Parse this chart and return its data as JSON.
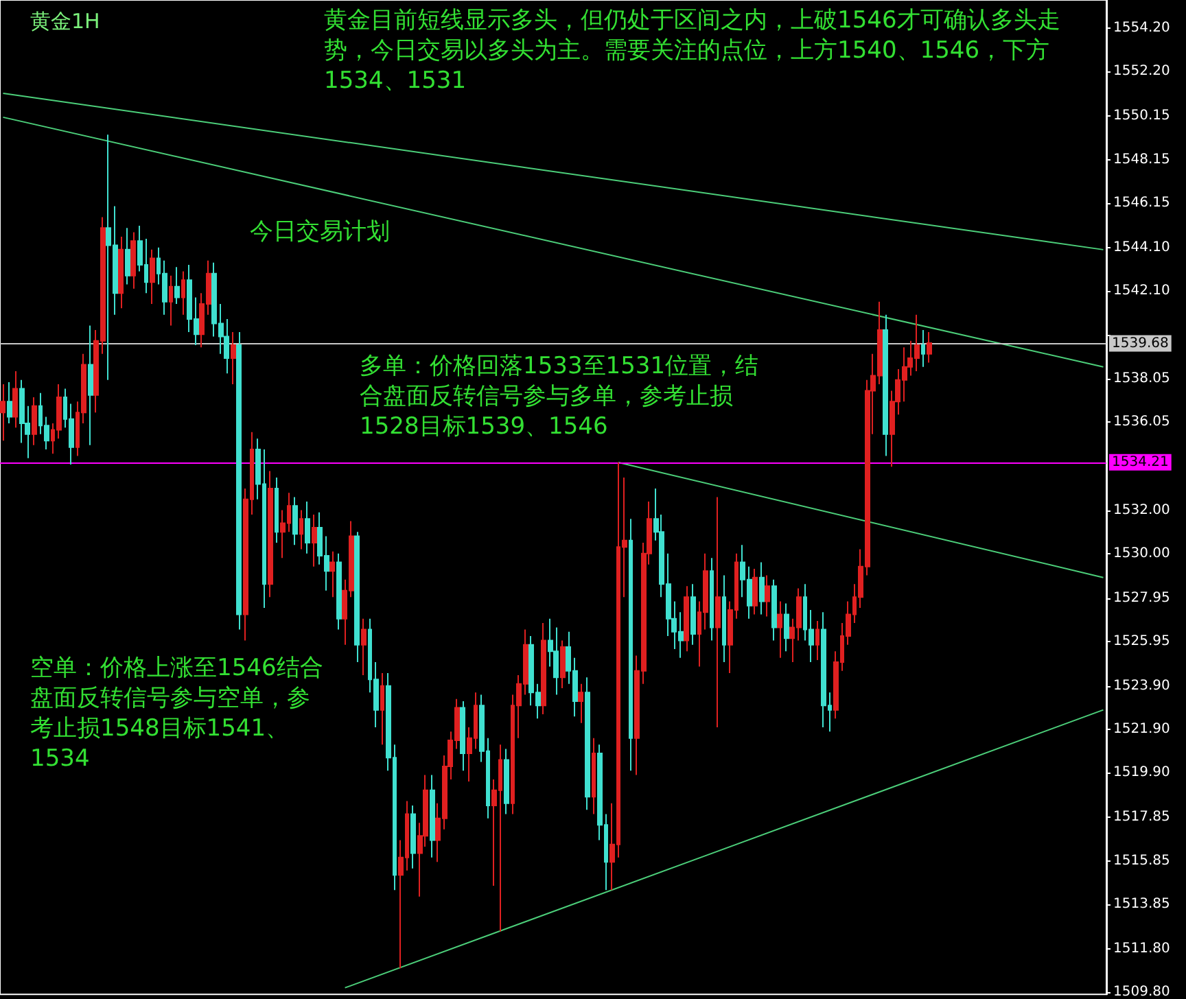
{
  "chart_data": {
    "type": "candlestick",
    "title": "黄金1H",
    "annotations": [
      "黄金目前短线显示多头，但仍处于区间之内，上破1546才可确认多头走势，今日交易以多头为主。需要关注的点位，上方1540、1546，下方1534、1531",
      "今日交易计划",
      "多单：价格回落1533至1531位置，结合盘面反转信号参与多单，参考止损1528目标1539、1546",
      "空单：价格上涨至1546结合盘面反转信号参与空单，参考止损1548目标1541、1534"
    ],
    "categories": [
      null,
      null,
      null,
      null,
      null,
      null,
      null,
      null,
      null,
      null,
      null,
      null,
      null,
      null,
      null,
      null,
      null,
      null,
      null,
      null,
      null,
      null,
      null,
      null,
      null,
      null,
      null,
      null,
      null,
      null,
      null,
      null,
      null,
      null,
      null,
      null,
      null,
      null,
      null,
      null,
      null,
      null,
      null,
      null,
      null,
      null,
      null,
      null,
      null,
      null,
      null,
      null,
      null,
      null,
      null,
      null,
      null,
      null,
      null,
      null,
      null,
      null,
      null,
      null,
      null,
      null,
      null,
      null,
      null,
      null,
      null,
      null,
      null,
      null,
      null,
      null,
      null,
      null,
      null,
      null,
      null,
      null,
      null,
      null,
      null,
      null,
      null,
      null,
      null,
      null,
      null,
      null,
      null,
      null,
      null,
      null,
      null,
      null,
      null,
      null,
      null,
      null,
      null,
      null,
      null,
      null,
      null,
      null,
      null,
      null,
      null,
      null,
      null,
      null,
      null,
      null,
      null,
      null,
      null,
      null,
      null,
      null,
      null,
      null,
      null,
      null,
      null,
      null,
      null,
      null,
      null,
      null,
      null,
      null,
      null,
      null,
      null,
      null,
      null,
      null,
      null,
      null,
      null,
      null,
      null,
      null,
      null,
      null,
      null,
      null,
      null,
      null,
      null,
      null,
      null,
      null,
      null,
      null,
      null,
      null,
      null,
      null,
      null,
      null,
      null,
      null,
      null,
      null,
      null,
      null,
      null,
      null,
      null,
      null,
      null,
      null,
      null,
      null
    ],
    "ohlc": [
      [
        1536.5,
        1537.8,
        1535.2,
        1537.0
      ],
      [
        1537.0,
        1537.9,
        1536.0,
        1536.3
      ],
      [
        1536.3,
        1538.4,
        1535.8,
        1537.6
      ],
      [
        1537.6,
        1538.0,
        1535.1,
        1536.0
      ],
      [
        1536.0,
        1536.8,
        1534.4,
        1535.5
      ],
      [
        1535.5,
        1537.2,
        1535.0,
        1536.8
      ],
      [
        1536.8,
        1537.4,
        1535.5,
        1535.9
      ],
      [
        1535.9,
        1536.3,
        1534.8,
        1535.2
      ],
      [
        1535.2,
        1536.0,
        1534.6,
        1535.7
      ],
      [
        1535.7,
        1537.8,
        1535.3,
        1537.2
      ],
      [
        1537.2,
        1537.6,
        1535.8,
        1536.2
      ],
      [
        1536.2,
        1536.9,
        1534.1,
        1534.9
      ],
      [
        1534.9,
        1537.0,
        1534.5,
        1536.5
      ],
      [
        1536.5,
        1539.2,
        1536.0,
        1538.7
      ],
      [
        1538.7,
        1540.5,
        1535.0,
        1537.3
      ],
      [
        1537.3,
        1540.3,
        1536.5,
        1539.8
      ],
      [
        1539.8,
        1545.5,
        1539.2,
        1545.0
      ],
      [
        1545.0,
        1549.3,
        1538.0,
        1544.2
      ],
      [
        1544.2,
        1546.0,
        1541.0,
        1542.0
      ],
      [
        1542.0,
        1544.6,
        1541.3,
        1544.0
      ],
      [
        1544.0,
        1545.0,
        1542.4,
        1542.8
      ],
      [
        1542.8,
        1544.8,
        1542.2,
        1544.4
      ],
      [
        1544.4,
        1545.1,
        1543.0,
        1543.3
      ],
      [
        1543.3,
        1544.5,
        1542.0,
        1542.5
      ],
      [
        1542.5,
        1544.0,
        1541.5,
        1543.6
      ],
      [
        1543.6,
        1544.1,
        1542.4,
        1542.9
      ],
      [
        1542.9,
        1543.5,
        1541.0,
        1541.6
      ],
      [
        1541.6,
        1542.8,
        1540.5,
        1542.3
      ],
      [
        1542.3,
        1543.2,
        1541.5,
        1541.8
      ],
      [
        1541.8,
        1543.0,
        1541.0,
        1542.6
      ],
      [
        1542.6,
        1543.3,
        1540.2,
        1540.8
      ],
      [
        1540.8,
        1541.8,
        1539.6,
        1540.1
      ],
      [
        1540.1,
        1542.0,
        1539.5,
        1541.5
      ],
      [
        1541.5,
        1543.5,
        1541.0,
        1542.9
      ],
      [
        1542.9,
        1543.4,
        1540.0,
        1540.6
      ],
      [
        1540.6,
        1541.5,
        1539.2,
        1540.0
      ],
      [
        1540.0,
        1540.8,
        1538.3,
        1539.0
      ],
      [
        1539.0,
        1540.2,
        1537.8,
        1539.6
      ],
      [
        1539.6,
        1540.2,
        1526.5,
        1527.2
      ],
      [
        1527.2,
        1533.0,
        1526.0,
        1532.5
      ],
      [
        1532.5,
        1535.6,
        1531.8,
        1534.8
      ],
      [
        1534.8,
        1535.3,
        1532.5,
        1533.2
      ],
      [
        1533.2,
        1534.8,
        1527.5,
        1528.6
      ],
      [
        1528.6,
        1533.8,
        1528.0,
        1533.0
      ],
      [
        1533.0,
        1533.5,
        1530.5,
        1531.0
      ],
      [
        1531.0,
        1532.0,
        1529.8,
        1531.4
      ],
      [
        1531.4,
        1532.8,
        1531.0,
        1532.2
      ],
      [
        1532.2,
        1532.6,
        1530.4,
        1530.9
      ],
      [
        1530.9,
        1532.0,
        1530.2,
        1531.6
      ],
      [
        1531.6,
        1532.4,
        1530.0,
        1530.5
      ],
      [
        1530.5,
        1531.8,
        1529.4,
        1531.2
      ],
      [
        1531.2,
        1531.9,
        1529.5,
        1529.9
      ],
      [
        1529.9,
        1530.8,
        1528.3,
        1529.2
      ],
      [
        1529.2,
        1530.1,
        1528.0,
        1529.6
      ],
      [
        1529.6,
        1530.0,
        1526.5,
        1527.0
      ],
      [
        1527.0,
        1528.8,
        1525.8,
        1528.3
      ],
      [
        1528.3,
        1531.5,
        1528.0,
        1530.8
      ],
      [
        1530.8,
        1531.0,
        1525.0,
        1525.8
      ],
      [
        1525.8,
        1527.0,
        1524.4,
        1526.5
      ],
      [
        1526.5,
        1527.0,
        1523.6,
        1524.2
      ],
      [
        1524.2,
        1525.0,
        1522.0,
        1522.8
      ],
      [
        1522.8,
        1524.5,
        1521.2,
        1523.9
      ],
      [
        1523.9,
        1524.5,
        1520.0,
        1520.6
      ],
      [
        1520.6,
        1521.2,
        1514.5,
        1515.2
      ],
      [
        1515.2,
        1516.8,
        1510.9,
        1516.0
      ],
      [
        1516.0,
        1518.6,
        1515.4,
        1518.0
      ],
      [
        1518.0,
        1518.4,
        1515.5,
        1516.2
      ],
      [
        1516.2,
        1517.6,
        1514.2,
        1517.0
      ],
      [
        1517.0,
        1519.8,
        1516.5,
        1519.1
      ],
      [
        1519.1,
        1519.8,
        1516.0,
        1516.8
      ],
      [
        1516.8,
        1518.5,
        1515.8,
        1517.8
      ],
      [
        1517.8,
        1520.7,
        1517.3,
        1520.2
      ],
      [
        1520.2,
        1521.8,
        1519.6,
        1521.4
      ],
      [
        1521.4,
        1523.3,
        1521.0,
        1522.9
      ],
      [
        1522.9,
        1523.2,
        1520.0,
        1520.8
      ],
      [
        1520.8,
        1522.0,
        1519.5,
        1521.5
      ],
      [
        1521.5,
        1523.6,
        1521.0,
        1523.0
      ],
      [
        1523.0,
        1523.5,
        1520.4,
        1520.9
      ],
      [
        1520.9,
        1521.5,
        1517.8,
        1518.4
      ],
      [
        1518.4,
        1519.6,
        1514.7,
        1519.1
      ],
      [
        1519.1,
        1521.2,
        1512.6,
        1520.5
      ],
      [
        1520.5,
        1521.0,
        1518.0,
        1518.5
      ],
      [
        1518.5,
        1523.5,
        1518.0,
        1523.0
      ],
      [
        1523.0,
        1524.4,
        1521.5,
        1524.0
      ],
      [
        1524.0,
        1526.5,
        1523.5,
        1525.8
      ],
      [
        1525.8,
        1526.2,
        1523.0,
        1523.6
      ],
      [
        1523.6,
        1524.0,
        1522.4,
        1523.0
      ],
      [
        1523.0,
        1526.8,
        1522.6,
        1526.0
      ],
      [
        1526.0,
        1527.0,
        1524.8,
        1525.5
      ],
      [
        1525.5,
        1526.6,
        1523.5,
        1524.3
      ],
      [
        1524.3,
        1526.0,
        1523.8,
        1525.7
      ],
      [
        1525.7,
        1526.4,
        1524.0,
        1524.6
      ],
      [
        1524.6,
        1525.2,
        1522.5,
        1523.2
      ],
      [
        1523.2,
        1524.0,
        1522.2,
        1523.6
      ],
      [
        1523.6,
        1524.3,
        1518.2,
        1518.8
      ],
      [
        1518.8,
        1521.5,
        1518.0,
        1520.8
      ],
      [
        1520.8,
        1521.2,
        1516.8,
        1517.5
      ],
      [
        1517.5,
        1518.0,
        1514.5,
        1515.8
      ],
      [
        1515.8,
        1518.5,
        1514.5,
        1516.6
      ],
      [
        1516.6,
        1534.2,
        1516.0,
        1530.3
      ],
      [
        1530.3,
        1533.5,
        1528.0,
        1530.6
      ],
      [
        1530.6,
        1531.6,
        1520.0,
        1521.5
      ],
      [
        1521.5,
        1525.3,
        1519.8,
        1524.6
      ],
      [
        1524.6,
        1530.5,
        1524.0,
        1530.0
      ],
      [
        1530.0,
        1532.4,
        1529.5,
        1531.6
      ],
      [
        1531.6,
        1533.0,
        1530.6,
        1531.0
      ],
      [
        1531.0,
        1531.8,
        1528.0,
        1528.6
      ],
      [
        1528.6,
        1530.0,
        1526.2,
        1527.0
      ],
      [
        1527.0,
        1527.8,
        1525.6,
        1526.4
      ],
      [
        1526.4,
        1527.3,
        1525.2,
        1526.0
      ],
      [
        1526.0,
        1528.5,
        1525.5,
        1528.0
      ],
      [
        1528.0,
        1528.6,
        1525.8,
        1526.3
      ],
      [
        1526.3,
        1527.8,
        1524.8,
        1527.3
      ],
      [
        1527.3,
        1530.0,
        1526.5,
        1529.2
      ],
      [
        1529.2,
        1529.8,
        1526.0,
        1526.6
      ],
      [
        1526.6,
        1532.6,
        1522.0,
        1528.0
      ],
      [
        1528.0,
        1529.0,
        1525.0,
        1525.8
      ],
      [
        1525.8,
        1527.8,
        1524.5,
        1527.4
      ],
      [
        1527.4,
        1530.0,
        1527.0,
        1529.6
      ],
      [
        1529.6,
        1530.4,
        1528.0,
        1528.8
      ],
      [
        1528.8,
        1529.4,
        1527.0,
        1527.6
      ],
      [
        1527.6,
        1529.3,
        1527.2,
        1528.9
      ],
      [
        1528.9,
        1529.6,
        1527.2,
        1527.8
      ],
      [
        1527.8,
        1529.0,
        1527.1,
        1528.5
      ],
      [
        1528.5,
        1528.8,
        1526.0,
        1526.6
      ],
      [
        1526.6,
        1527.8,
        1525.2,
        1527.2
      ],
      [
        1527.2,
        1527.7,
        1525.5,
        1526.1
      ],
      [
        1526.1,
        1527.0,
        1525.0,
        1526.6
      ],
      [
        1526.6,
        1528.4,
        1526.0,
        1528.0
      ],
      [
        1528.0,
        1528.6,
        1526.0,
        1526.5
      ],
      [
        1526.5,
        1527.4,
        1525.0,
        1525.8
      ],
      [
        1525.8,
        1526.9,
        1525.1,
        1526.5
      ],
      [
        1526.5,
        1527.3,
        1522.0,
        1523.0
      ],
      [
        1523.0,
        1523.6,
        1521.8,
        1522.8
      ],
      [
        1522.8,
        1525.5,
        1522.4,
        1525.0
      ],
      [
        1525.0,
        1526.8,
        1524.6,
        1526.2
      ],
      [
        1526.2,
        1527.8,
        1525.8,
        1527.2
      ],
      [
        1527.2,
        1528.6,
        1526.8,
        1528.0
      ],
      [
        1528.0,
        1530.2,
        1527.5,
        1529.4
      ],
      [
        1529.4,
        1538.0,
        1529.0,
        1537.5
      ],
      [
        1537.5,
        1539.2,
        1535.5,
        1538.2
      ],
      [
        1538.2,
        1541.6,
        1537.8,
        1540.3
      ],
      [
        1540.3,
        1541.0,
        1534.5,
        1535.5
      ],
      [
        1535.5,
        1537.5,
        1534.0,
        1537.0
      ],
      [
        1537.0,
        1538.5,
        1536.4,
        1538.0
      ],
      [
        1538.0,
        1539.5,
        1537.0,
        1538.6
      ],
      [
        1538.6,
        1539.8,
        1538.2,
        1539.0
      ],
      [
        1539.0,
        1541.0,
        1538.4,
        1539.6
      ],
      [
        1539.6,
        1540.3,
        1538.6,
        1539.2
      ],
      [
        1539.2,
        1540.2,
        1538.8,
        1539.7
      ],
      null,
      null,
      null,
      null,
      null,
      null,
      null,
      null,
      null,
      null,
      null,
      null,
      null,
      null,
      null,
      null,
      null,
      null,
      null,
      null,
      null,
      null,
      null,
      null,
      null,
      null,
      null,
      null
    ],
    "series": [
      {
        "type": "line",
        "color": "#4ccf7a",
        "values": [
          1551.2,
          null,
          null,
          null,
          null,
          null,
          null,
          null,
          null,
          null,
          null,
          null,
          null,
          null,
          null,
          null,
          null,
          null,
          null,
          null,
          null,
          null,
          null,
          null,
          null,
          null,
          null,
          null,
          null,
          null,
          null,
          null,
          null,
          null,
          null,
          null,
          null,
          null,
          null,
          null,
          null,
          null,
          null,
          null,
          null,
          null,
          null,
          null,
          null,
          null,
          null,
          null,
          null,
          null,
          null,
          null,
          null,
          null,
          null,
          null,
          null,
          null,
          null,
          null,
          null,
          null,
          null,
          null,
          null,
          null,
          null,
          null,
          null,
          null,
          null,
          null,
          null,
          null,
          null,
          null,
          null,
          null,
          null,
          null,
          null,
          null,
          null,
          null,
          null,
          null,
          null,
          null,
          null,
          null,
          null,
          null,
          null,
          null,
          null,
          null,
          null,
          null,
          null,
          null,
          null,
          null,
          null,
          null,
          null,
          null,
          null,
          null,
          null,
          null,
          null,
          null,
          null,
          null,
          null,
          null,
          null,
          null,
          null,
          null,
          null,
          null,
          null,
          null,
          null,
          null,
          null,
          null,
          null,
          null,
          null,
          null,
          null,
          null,
          null,
          null,
          null,
          null,
          null,
          null,
          null,
          null,
          null,
          null,
          null,
          null,
          null,
          null,
          null,
          null,
          null,
          null,
          null,
          null,
          null,
          null,
          null,
          null,
          null,
          null,
          null,
          null,
          null,
          null,
          null,
          null,
          null,
          null,
          null,
          null,
          null,
          null,
          null,
          1544.0
        ]
      },
      {
        "type": "line",
        "color": "#4ccf7a",
        "values": [
          1550.1,
          null,
          null,
          null,
          null,
          null,
          null,
          null,
          null,
          null,
          null,
          null,
          null,
          null,
          null,
          null,
          null,
          null,
          null,
          null,
          null,
          null,
          null,
          null,
          null,
          null,
          null,
          null,
          null,
          null,
          null,
          null,
          null,
          null,
          null,
          null,
          null,
          null,
          null,
          null,
          null,
          null,
          null,
          null,
          null,
          null,
          null,
          null,
          null,
          null,
          null,
          null,
          null,
          null,
          null,
          null,
          null,
          null,
          null,
          null,
          null,
          null,
          null,
          null,
          null,
          null,
          null,
          null,
          null,
          null,
          null,
          null,
          null,
          null,
          null,
          null,
          null,
          null,
          null,
          null,
          null,
          null,
          null,
          null,
          null,
          null,
          null,
          null,
          null,
          null,
          null,
          null,
          null,
          null,
          null,
          null,
          null,
          null,
          null,
          null,
          null,
          null,
          null,
          null,
          null,
          null,
          null,
          null,
          null,
          null,
          null,
          null,
          null,
          null,
          null,
          null,
          null,
          null,
          null,
          null,
          null,
          null,
          null,
          null,
          null,
          null,
          null,
          null,
          null,
          null,
          null,
          null,
          null,
          null,
          null,
          null,
          null,
          null,
          null,
          null,
          null,
          null,
          null,
          null,
          null,
          null,
          null,
          null,
          null,
          null,
          null,
          null,
          null,
          null,
          null,
          null,
          null,
          null,
          null,
          null,
          null,
          null,
          null,
          null,
          null,
          null,
          null,
          null,
          null,
          null,
          null,
          null,
          null,
          null,
          null,
          null,
          null,
          1538.6
        ]
      },
      {
        "type": "line",
        "color": "#4ccf7a",
        "values": [
          null,
          null,
          null,
          null,
          null,
          null,
          null,
          null,
          null,
          null,
          null,
          null,
          null,
          null,
          null,
          null,
          null,
          null,
          null,
          null,
          null,
          null,
          null,
          null,
          null,
          null,
          null,
          null,
          null,
          null,
          null,
          null,
          null,
          null,
          null,
          null,
          null,
          null,
          null,
          null,
          null,
          null,
          null,
          null,
          null,
          null,
          null,
          null,
          null,
          null,
          null,
          null,
          null,
          null,
          null,
          null,
          null,
          null,
          null,
          null,
          null,
          null,
          null,
          null,
          null,
          null,
          null,
          null,
          null,
          null,
          null,
          null,
          null,
          null,
          null,
          null,
          null,
          null,
          null,
          null,
          null,
          null,
          null,
          null,
          null,
          null,
          null,
          null,
          null,
          null,
          null,
          null,
          null,
          null,
          null,
          null,
          null,
          null,
          null,
          1534.2,
          null,
          null,
          null,
          null,
          null,
          null,
          null,
          null,
          null,
          null,
          null,
          null,
          null,
          null,
          null,
          null,
          null,
          null,
          null,
          null,
          null,
          null,
          null,
          null,
          null,
          null,
          null,
          null,
          null,
          null,
          null,
          null,
          null,
          null,
          null,
          null,
          null,
          null,
          null,
          null,
          null,
          null,
          null,
          null,
          null,
          null,
          null,
          null,
          null,
          null,
          null,
          null,
          null,
          null,
          null,
          null,
          null,
          null,
          null,
          null,
          null,
          null,
          null,
          null,
          null,
          null,
          null,
          null,
          null,
          null,
          null,
          null,
          null,
          null,
          null,
          null,
          null,
          1528.9
        ]
      },
      {
        "type": "line",
        "color": "#4ccf7a",
        "values": [
          null,
          null,
          null,
          null,
          null,
          null,
          null,
          null,
          null,
          null,
          null,
          null,
          null,
          null,
          null,
          null,
          null,
          null,
          null,
          null,
          null,
          null,
          null,
          null,
          null,
          null,
          null,
          null,
          null,
          null,
          null,
          null,
          null,
          null,
          null,
          null,
          null,
          null,
          null,
          null,
          null,
          null,
          null,
          null,
          null,
          null,
          null,
          null,
          null,
          null,
          null,
          null,
          null,
          null,
          null,
          1510.0,
          null,
          null,
          null,
          null,
          null,
          null,
          null,
          null,
          null,
          null,
          null,
          null,
          null,
          null,
          null,
          null,
          null,
          null,
          null,
          null,
          null,
          null,
          null,
          null,
          null,
          null,
          null,
          null,
          null,
          null,
          null,
          null,
          null,
          null,
          null,
          null,
          null,
          null,
          null,
          null,
          null,
          null,
          null,
          null,
          null,
          null,
          null,
          null,
          null,
          null,
          null,
          null,
          null,
          null,
          null,
          null,
          null,
          null,
          null,
          null,
          null,
          null,
          null,
          null,
          null,
          null,
          null,
          null,
          null,
          null,
          null,
          null,
          null,
          null,
          null,
          null,
          null,
          null,
          null,
          null,
          null,
          null,
          null,
          null,
          null,
          null,
          null,
          null,
          null,
          null,
          null,
          null,
          null,
          null,
          null,
          null,
          null,
          null,
          null,
          null,
          null,
          null,
          null,
          null,
          null,
          null,
          null,
          null,
          null,
          null,
          null,
          null,
          null,
          null,
          null,
          null,
          null,
          null,
          null,
          null,
          null,
          1522.8
        ]
      }
    ],
    "ylim": [
      1509.7,
      1555.5
    ],
    "yticks": [
      {
        "value": 1554.2,
        "label": "1554.20"
      },
      {
        "value": 1552.2,
        "label": "1552.20"
      },
      1550.15,
      1548.15,
      1546.15,
      {
        "value": 1544.1,
        "label": "1544.10"
      },
      {
        "value": 1542.1,
        "label": "1542.10"
      },
      {
        "value": 1540.05,
        "label": null
      },
      1538.05,
      1536.05,
      {
        "value": 1532.0,
        "label": "1532.00"
      },
      {
        "value": 1530.0,
        "label": "1530.00"
      },
      1527.95,
      1525.95,
      {
        "value": 1523.9,
        "label": "1523.90"
      },
      {
        "value": 1521.9,
        "label": "1521.90"
      },
      {
        "value": 1519.9,
        "label": "1519.90"
      },
      1517.85,
      1515.85,
      1513.85,
      {
        "value": 1511.8,
        "label": "1511.80"
      },
      {
        "value": 1509.8,
        "label": "1509.80"
      }
    ],
    "tick_labels": "y",
    "grid": false,
    "ref_lines": [
      {
        "axis": "y",
        "value": 1539.68,
        "label": "1539.68",
        "color": "#c8c8c8"
      },
      {
        "axis": "y",
        "value": 1534.21,
        "label": "1534.21",
        "color": "#ff00ff"
      }
    ]
  }
}
